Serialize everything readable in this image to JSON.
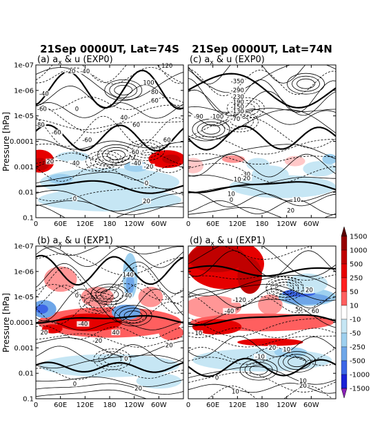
{
  "colors": {
    "positive": [
      "#ffc8c8",
      "#ff9696",
      "#ff5f5f",
      "#ff2020",
      "#e60000",
      "#c00000",
      "#960000",
      "#5a0000"
    ],
    "negative": [
      "#c6e6f4",
      "#9ed0ef",
      "#6ea6e8",
      "#3c66e6",
      "#1a22d6",
      "#0000aa",
      "#8a20b8"
    ],
    "contour": "#000000"
  },
  "figure": {
    "column_titles": [
      "21Sep 0000UT, Lat=74S",
      "21Sep 0000UT, Lat=74N"
    ],
    "ylabel": "Pressure [hPa]",
    "x_ticks": [
      "0",
      "60E",
      "120E",
      "180",
      "120W",
      "60W"
    ],
    "y_ticks": [
      "1e-07",
      "1e-06",
      "1e-05",
      "0.0001",
      "0.001",
      "0.01",
      "0.1"
    ]
  },
  "chart_data": [
    {
      "type": "heatmap",
      "panel": "(a)",
      "title": "(a) a_x & u (EXP0)",
      "title_prefix": "(a)",
      "title_rest": " & u (EXP0)",
      "experiment": "EXP0",
      "latitude": "74S",
      "fill_variable": "a_x",
      "contour_variable": "u",
      "xlim": [
        0,
        360
      ],
      "ylim_hpa": [
        0.1,
        1e-07
      ],
      "y_log": true,
      "fill_patches": [
        {
          "x": 10,
          "y": 0.0006,
          "rx": 35,
          "ry": 0.45,
          "value": 500
        },
        {
          "x": 10,
          "y": 0.0008,
          "rx": 22,
          "ry": 0.25,
          "value": 1000
        },
        {
          "x": 320,
          "y": 0.0005,
          "rx": 45,
          "ry": 0.35,
          "value": 500
        },
        {
          "x": 330,
          "y": 0.0005,
          "rx": 22,
          "ry": 0.18,
          "value": 1000
        },
        {
          "x": 90,
          "y": 0.0004,
          "rx": 40,
          "ry": 0.2,
          "value": -10
        },
        {
          "x": 180,
          "y": 0.004,
          "rx": 170,
          "ry": 0.55,
          "value": -10
        },
        {
          "x": 180,
          "y": 0.02,
          "rx": 175,
          "ry": 0.45,
          "value": -10
        },
        {
          "x": 60,
          "y": 0.003,
          "rx": 30,
          "ry": 0.2,
          "value": -50
        },
        {
          "x": 245,
          "y": 0.001,
          "rx": 30,
          "ry": 0.2,
          "value": -50
        }
      ],
      "contour_labels": [
        {
          "x": 85,
          "y": 2e-07,
          "text": "-20"
        },
        {
          "x": 120,
          "y": 2e-07,
          "text": "-40"
        },
        {
          "x": 320,
          "y": 1.2e-07,
          "text": "120"
        },
        {
          "x": 275,
          "y": 5.5e-07,
          "text": "100"
        },
        {
          "x": 290,
          "y": 1.3e-06,
          "text": "80"
        },
        {
          "x": 290,
          "y": 2.8e-06,
          "text": "60"
        },
        {
          "x": 20,
          "y": 1.5e-06,
          "text": "-40"
        },
        {
          "x": 15,
          "y": 6e-06,
          "text": "-60"
        },
        {
          "x": 100,
          "y": 6e-06,
          "text": "0"
        },
        {
          "x": 215,
          "y": 1.3e-05,
          "text": "40"
        },
        {
          "x": 245,
          "y": 2.5e-05,
          "text": "60"
        },
        {
          "x": 10,
          "y": 2.5e-05,
          "text": "-80"
        },
        {
          "x": 50,
          "y": 5e-05,
          "text": "-60"
        },
        {
          "x": 125,
          "y": 0.0001,
          "text": "-60"
        },
        {
          "x": 320,
          "y": 0.0001,
          "text": "60"
        },
        {
          "x": 240,
          "y": 0.0003,
          "text": "-60"
        },
        {
          "x": 35,
          "y": 0.0007,
          "text": "20"
        },
        {
          "x": 245,
          "y": 0.0008,
          "text": "-40"
        },
        {
          "x": 95,
          "y": 0.0008,
          "text": "-40"
        },
        {
          "x": 275,
          "y": 0.0011,
          "text": "-20"
        },
        {
          "x": 270,
          "y": 0.005,
          "text": "0"
        },
        {
          "x": 95,
          "y": 0.02,
          "text": "0"
        },
        {
          "x": 270,
          "y": 0.025,
          "text": "20"
        }
      ]
    },
    {
      "type": "heatmap",
      "panel": "(b)",
      "title": "(b) a_x & u (EXP1)",
      "title_prefix": "(b)",
      "title_rest": " & u (EXP1)",
      "experiment": "EXP1",
      "latitude": "74S",
      "fill_variable": "a_x",
      "contour_variable": "u",
      "xlim": [
        0,
        360
      ],
      "ylim_hpa": [
        0.1,
        1e-07
      ],
      "y_log": true,
      "fill_patches": [
        {
          "x": 180,
          "y": 0.0001,
          "rx": 175,
          "ry": 0.6,
          "value": 250
        },
        {
          "x": 130,
          "y": 0.0001,
          "rx": 80,
          "ry": 0.35,
          "value": 500
        },
        {
          "x": 40,
          "y": 0.00018,
          "rx": 25,
          "ry": 0.18,
          "value": 500
        },
        {
          "x": 330,
          "y": 0.00025,
          "rx": 30,
          "ry": 0.3,
          "value": 250
        },
        {
          "x": 60,
          "y": 2e-06,
          "rx": 40,
          "ry": 0.5,
          "value": 50
        },
        {
          "x": 150,
          "y": 1e-05,
          "rx": 40,
          "ry": 0.4,
          "value": 50
        },
        {
          "x": 280,
          "y": 1e-05,
          "rx": 30,
          "ry": 0.4,
          "value": 50
        },
        {
          "x": 230,
          "y": 1.5e-06,
          "rx": 18,
          "ry": 0.9,
          "value": -50
        },
        {
          "x": 230,
          "y": 3e-06,
          "rx": 10,
          "ry": 0.4,
          "value": -250
        },
        {
          "x": 20,
          "y": 3e-05,
          "rx": 30,
          "ry": 0.35,
          "value": -250
        },
        {
          "x": 15,
          "y": 3e-05,
          "rx": 15,
          "ry": 0.18,
          "value": -500
        },
        {
          "x": 220,
          "y": 4e-05,
          "rx": 35,
          "ry": 0.3,
          "value": -250
        },
        {
          "x": 180,
          "y": 0.005,
          "rx": 170,
          "ry": 0.45,
          "value": -10
        },
        {
          "x": 300,
          "y": 0.02,
          "rx": 55,
          "ry": 0.3,
          "value": -10
        }
      ],
      "contour_labels": [
        {
          "x": 225,
          "y": 1.5e-06,
          "text": "140"
        },
        {
          "x": 100,
          "y": 1e-05,
          "text": "0"
        },
        {
          "x": 225,
          "y": 1e-05,
          "text": "40"
        },
        {
          "x": 115,
          "y": 0.00013,
          "text": "-40"
        },
        {
          "x": 20,
          "y": 0.00028,
          "text": "20"
        },
        {
          "x": 195,
          "y": 0.00028,
          "text": "40"
        },
        {
          "x": 150,
          "y": 0.0006,
          "text": "-20"
        },
        {
          "x": 325,
          "y": 0.0009,
          "text": "20"
        },
        {
          "x": 220,
          "y": 0.003,
          "text": "0"
        },
        {
          "x": 95,
          "y": 0.03,
          "text": "0"
        },
        {
          "x": 250,
          "y": 0.045,
          "text": "20"
        }
      ]
    },
    {
      "type": "heatmap",
      "panel": "(c)",
      "title": "(c) a_x & u (EXP0)",
      "title_prefix": "(c)",
      "title_rest": " & u (EXP0)",
      "experiment": "EXP0",
      "latitude": "74N",
      "fill_variable": "a_x",
      "contour_variable": "u",
      "xlim": [
        0,
        360
      ],
      "ylim_hpa": [
        0.1,
        1e-07
      ],
      "y_log": true,
      "fill_patches": [
        {
          "x": 110,
          "y": 0.0005,
          "rx": 28,
          "ry": 0.15,
          "value": 50
        },
        {
          "x": 12,
          "y": 0.0009,
          "rx": 25,
          "ry": 0.3,
          "value": 10
        },
        {
          "x": 260,
          "y": 0.0006,
          "rx": 25,
          "ry": 0.2,
          "value": 10
        },
        {
          "x": 170,
          "y": 0.0008,
          "rx": 28,
          "ry": 0.25,
          "value": -10
        },
        {
          "x": 200,
          "y": 0.002,
          "rx": 45,
          "ry": 0.35,
          "value": -10
        },
        {
          "x": 320,
          "y": 0.0012,
          "rx": 40,
          "ry": 0.3,
          "value": -10
        },
        {
          "x": 345,
          "y": 0.0005,
          "rx": 18,
          "ry": 0.2,
          "value": -50
        },
        {
          "x": 230,
          "y": 0.006,
          "rx": 130,
          "ry": 0.45,
          "value": -10
        }
      ],
      "contour_labels": [
        {
          "x": 120,
          "y": 5e-07,
          "text": "-350"
        },
        {
          "x": 120,
          "y": 1.1e-06,
          "text": "-290"
        },
        {
          "x": 120,
          "y": 2e-06,
          "text": "-230"
        },
        {
          "x": 120,
          "y": 3.2e-06,
          "text": "-190"
        },
        {
          "x": 120,
          "y": 5e-06,
          "text": "-150"
        },
        {
          "x": 120,
          "y": 7.5e-06,
          "text": "-130"
        },
        {
          "x": 25,
          "y": 1.2e-05,
          "text": "-90"
        },
        {
          "x": 70,
          "y": 1.2e-05,
          "text": "-100"
        },
        {
          "x": 115,
          "y": 1.5e-05,
          "text": "-70"
        },
        {
          "x": 140,
          "y": 0.0022,
          "text": "-30"
        },
        {
          "x": 140,
          "y": 0.0032,
          "text": "-20"
        },
        {
          "x": 120,
          "y": 0.0035,
          "text": "10"
        },
        {
          "x": 105,
          "y": 0.013,
          "text": "10"
        },
        {
          "x": 105,
          "y": 0.022,
          "text": "0"
        },
        {
          "x": 265,
          "y": 0.022,
          "text": "10"
        },
        {
          "x": 250,
          "y": 0.058,
          "text": "20"
        }
      ]
    },
    {
      "type": "heatmap",
      "panel": "(d)",
      "title": "(d) a_x & u (EXP1)",
      "title_prefix": "(d)",
      "title_rest": " & u (EXP1)",
      "experiment": "EXP1",
      "latitude": "74N",
      "fill_variable": "a_x",
      "contour_variable": "u",
      "xlim": [
        0,
        360
      ],
      "ylim_hpa": [
        0.1,
        1e-07
      ],
      "y_log": true,
      "fill_patches": [
        {
          "x": 90,
          "y": 5e-07,
          "rx": 95,
          "ry": 1.0,
          "value": 500
        },
        {
          "x": 70,
          "y": 3e-07,
          "rx": 70,
          "ry": 0.55,
          "value": 1000
        },
        {
          "x": 150,
          "y": 1.5e-06,
          "rx": 30,
          "ry": 0.7,
          "value": 1000
        },
        {
          "x": 60,
          "y": 2.5e-05,
          "rx": 70,
          "ry": 0.45,
          "value": 50
        },
        {
          "x": 200,
          "y": 2e-05,
          "rx": 30,
          "ry": 0.4,
          "value": 50
        },
        {
          "x": 180,
          "y": 0.0001,
          "rx": 175,
          "ry": 0.35,
          "value": 250
        },
        {
          "x": 70,
          "y": 0.00015,
          "rx": 60,
          "ry": 0.3,
          "value": 500
        },
        {
          "x": 200,
          "y": 0.0006,
          "rx": 80,
          "ry": 0.15,
          "value": 500
        },
        {
          "x": 290,
          "y": 1e-05,
          "rx": 70,
          "ry": 0.35,
          "value": -50
        },
        {
          "x": 290,
          "y": 1.2e-05,
          "rx": 55,
          "ry": 0.22,
          "value": -250
        },
        {
          "x": 270,
          "y": 7e-06,
          "rx": 40,
          "ry": 0.15,
          "value": -500
        },
        {
          "x": 290,
          "y": 3e-06,
          "rx": 50,
          "ry": 0.4,
          "value": -10
        },
        {
          "x": 180,
          "y": 0.003,
          "rx": 170,
          "ry": 0.45,
          "value": -10
        },
        {
          "x": 250,
          "y": 0.0015,
          "rx": 40,
          "ry": 0.2,
          "value": -50
        }
      ],
      "contour_labels": [
        {
          "x": 125,
          "y": 1.5e-05,
          "text": "-120"
        },
        {
          "x": 100,
          "y": 4e-05,
          "text": "-40"
        },
        {
          "x": 295,
          "y": 6e-06,
          "text": "20"
        },
        {
          "x": 270,
          "y": 3.5e-05,
          "text": "50"
        },
        {
          "x": 310,
          "y": 4e-05,
          "text": "60"
        },
        {
          "x": 25,
          "y": 0.0003,
          "text": "10"
        },
        {
          "x": 205,
          "y": 0.0011,
          "text": "20"
        },
        {
          "x": 240,
          "y": 0.0013,
          "text": "10"
        },
        {
          "x": 175,
          "y": 0.0025,
          "text": "-10"
        },
        {
          "x": 70,
          "y": 0.017,
          "text": "0"
        },
        {
          "x": 280,
          "y": 0.022,
          "text": "10"
        },
        {
          "x": 115,
          "y": 0.058,
          "text": "10"
        },
        {
          "x": 280,
          "y": 0.035,
          "text": "20"
        }
      ]
    }
  ],
  "colorbar": {
    "labels": [
      "1500",
      "1000",
      "500",
      "250",
      "50",
      "10",
      "-10",
      "-50",
      "-250",
      "-500",
      "-1000",
      "-1500"
    ]
  }
}
